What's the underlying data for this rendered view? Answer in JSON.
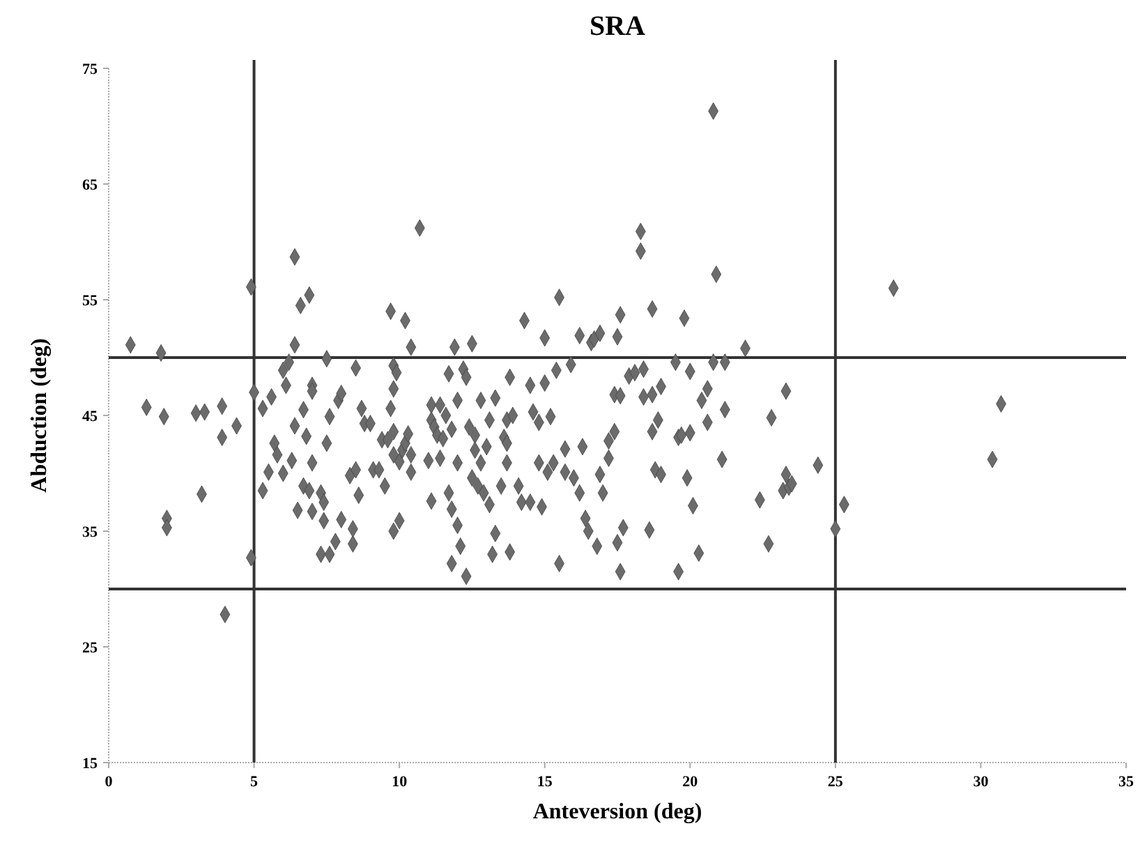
{
  "chart_data": {
    "type": "scatter",
    "title": "SRA",
    "xlabel": "Anteversion (deg)",
    "ylabel": "Abduction (deg)",
    "marker": "diamond",
    "xlim": [
      0,
      35
    ],
    "ylim": [
      15,
      75
    ],
    "xticks": [
      0,
      5,
      10,
      15,
      20,
      25,
      30,
      35
    ],
    "yticks": [
      15,
      25,
      35,
      45,
      55,
      65,
      75
    ],
    "ref_lines": [
      {
        "axis": "x",
        "value": 5,
        "color": "#333333"
      },
      {
        "axis": "x",
        "value": 25,
        "color": "#333333"
      },
      {
        "axis": "y",
        "value": 50,
        "color": "#333333"
      },
      {
        "axis": "y",
        "value": 30,
        "color": "#333333"
      }
    ],
    "series": [
      {
        "color": "#6b6b6b",
        "x": [
          0.75,
          1.3,
          1.8,
          1.9,
          2.0,
          2.0,
          3.0,
          3.3,
          3.2,
          3.9,
          3.9,
          4.0,
          4.4,
          4.9,
          4.9,
          5.0,
          5.3,
          5.3,
          5.5,
          5.6,
          5.7,
          5.8,
          6.0,
          6.0,
          6.1,
          6.2,
          6.3,
          6.4,
          6.4,
          6.6,
          6.9,
          6.4,
          6.5,
          6.7,
          6.8,
          7.0,
          7.0,
          6.7,
          6.9,
          7.0,
          7.0,
          7.4,
          7.3,
          7.4,
          7.5,
          7.5,
          7.3,
          7.6,
          7.6,
          7.8,
          7.9,
          8.0,
          8.0,
          8.3,
          8.4,
          8.4,
          8.5,
          8.5,
          8.6,
          8.7,
          8.8,
          9.0,
          9.1,
          9.3,
          9.4,
          9.6,
          9.5,
          9.7,
          9.8,
          9.9,
          9.8,
          9.7,
          9.8,
          9.8,
          9.8,
          10.0,
          10.0,
          10.1,
          10.2,
          10.2,
          10.4,
          10.3,
          10.4,
          10.4,
          10.7,
          11.1,
          11.1,
          11.0,
          11.1,
          11.2,
          11.3,
          11.4,
          11.4,
          11.5,
          11.6,
          11.7,
          11.7,
          11.8,
          11.8,
          11.8,
          11.9,
          12.0,
          12.0,
          12.0,
          12.1,
          12.2,
          12.3,
          12.3,
          12.5,
          12.4,
          12.6,
          12.5,
          12.6,
          12.7,
          12.8,
          12.8,
          12.9,
          13.0,
          13.1,
          13.1,
          13.2,
          13.3,
          13.3,
          13.5,
          13.6,
          13.7,
          13.7,
          13.7,
          13.8,
          13.8,
          13.9,
          14.1,
          14.2,
          14.3,
          14.5,
          14.5,
          14.6,
          14.8,
          14.8,
          14.9,
          15.0,
          15.0,
          15.1,
          15.2,
          15.3,
          15.4,
          15.5,
          15.5,
          15.7,
          15.7,
          15.9,
          16.0,
          16.2,
          16.2,
          16.3,
          16.4,
          16.5,
          16.6,
          16.7,
          16.8,
          16.9,
          16.9,
          17.0,
          17.2,
          17.2,
          17.4,
          17.4,
          17.5,
          17.5,
          17.6,
          17.6,
          17.6,
          17.7,
          17.9,
          18.1,
          18.3,
          18.3,
          18.4,
          18.4,
          18.6,
          18.7,
          18.7,
          18.7,
          18.8,
          18.9,
          19.0,
          19.0,
          19.5,
          19.6,
          19.7,
          19.8,
          19.6,
          19.9,
          20.0,
          20.0,
          20.1,
          20.3,
          20.4,
          20.6,
          20.6,
          20.8,
          20.8,
          20.9,
          21.1,
          21.2,
          21.2,
          21.9,
          22.4,
          22.7,
          22.8,
          23.2,
          23.3,
          23.3,
          23.4,
          23.5,
          24.4,
          25.0,
          25.3,
          27.0,
          30.4,
          30.7
        ],
        "values": [
          51.1,
          45.7,
          50.4,
          44.9,
          36.1,
          35.3,
          45.2,
          45.3,
          38.2,
          45.8,
          43.1,
          27.8,
          44.1,
          32.7,
          56.1,
          47.0,
          45.6,
          38.5,
          40.1,
          46.6,
          42.6,
          41.6,
          40.0,
          48.9,
          47.6,
          49.6,
          41.1,
          51.1,
          58.7,
          54.5,
          55.4,
          44.1,
          36.8,
          45.5,
          43.2,
          47.6,
          47.1,
          38.9,
          38.5,
          36.7,
          40.9,
          35.9,
          38.3,
          37.5,
          49.9,
          42.6,
          33.0,
          33.0,
          44.9,
          34.1,
          46.3,
          46.9,
          36.0,
          39.8,
          33.9,
          35.2,
          49.1,
          40.3,
          38.1,
          45.6,
          44.3,
          44.3,
          40.3,
          40.3,
          42.9,
          42.9,
          38.9,
          54.0,
          49.3,
          48.7,
          47.3,
          45.6,
          41.6,
          43.6,
          35.0,
          35.9,
          41.0,
          42.0,
          42.6,
          53.2,
          50.9,
          43.4,
          41.6,
          40.1,
          61.2,
          45.9,
          44.6,
          41.1,
          37.6,
          44.0,
          43.3,
          41.3,
          45.9,
          43.0,
          45.0,
          48.6,
          38.3,
          36.9,
          32.2,
          43.8,
          50.9,
          46.3,
          40.9,
          35.5,
          33.7,
          49.0,
          48.3,
          31.1,
          51.2,
          44.0,
          43.3,
          39.6,
          42.0,
          38.9,
          46.3,
          40.9,
          38.3,
          42.3,
          44.6,
          37.3,
          33.0,
          46.5,
          34.8,
          38.9,
          43.1,
          44.6,
          40.9,
          42.6,
          48.3,
          33.2,
          45.0,
          38.9,
          37.5,
          53.2,
          37.5,
          47.6,
          45.3,
          40.9,
          44.4,
          37.1,
          51.7,
          47.8,
          40.1,
          44.9,
          40.9,
          48.9,
          55.2,
          32.2,
          42.1,
          40.1,
          49.4,
          39.6,
          38.3,
          51.9,
          42.3,
          36.1,
          35.0,
          51.3,
          51.6,
          33.7,
          52.1,
          39.9,
          38.3,
          41.3,
          42.8,
          43.6,
          46.8,
          34.0,
          51.8,
          53.7,
          46.7,
          31.5,
          35.3,
          48.4,
          48.7,
          59.2,
          60.9,
          49.0,
          46.6,
          35.1,
          54.2,
          43.6,
          46.8,
          40.3,
          44.6,
          39.9,
          47.5,
          49.6,
          43.1,
          43.3,
          53.4,
          31.5,
          39.6,
          43.5,
          48.8,
          37.2,
          33.1,
          46.3,
          47.3,
          44.4,
          49.6,
          71.3,
          57.2,
          41.2,
          49.6,
          45.5,
          50.8,
          37.7,
          33.9,
          44.8,
          38.5,
          47.1,
          39.9,
          38.8,
          39.1,
          40.7,
          35.2,
          37.3,
          56.0,
          41.2,
          46.0
        ]
      }
    ]
  }
}
